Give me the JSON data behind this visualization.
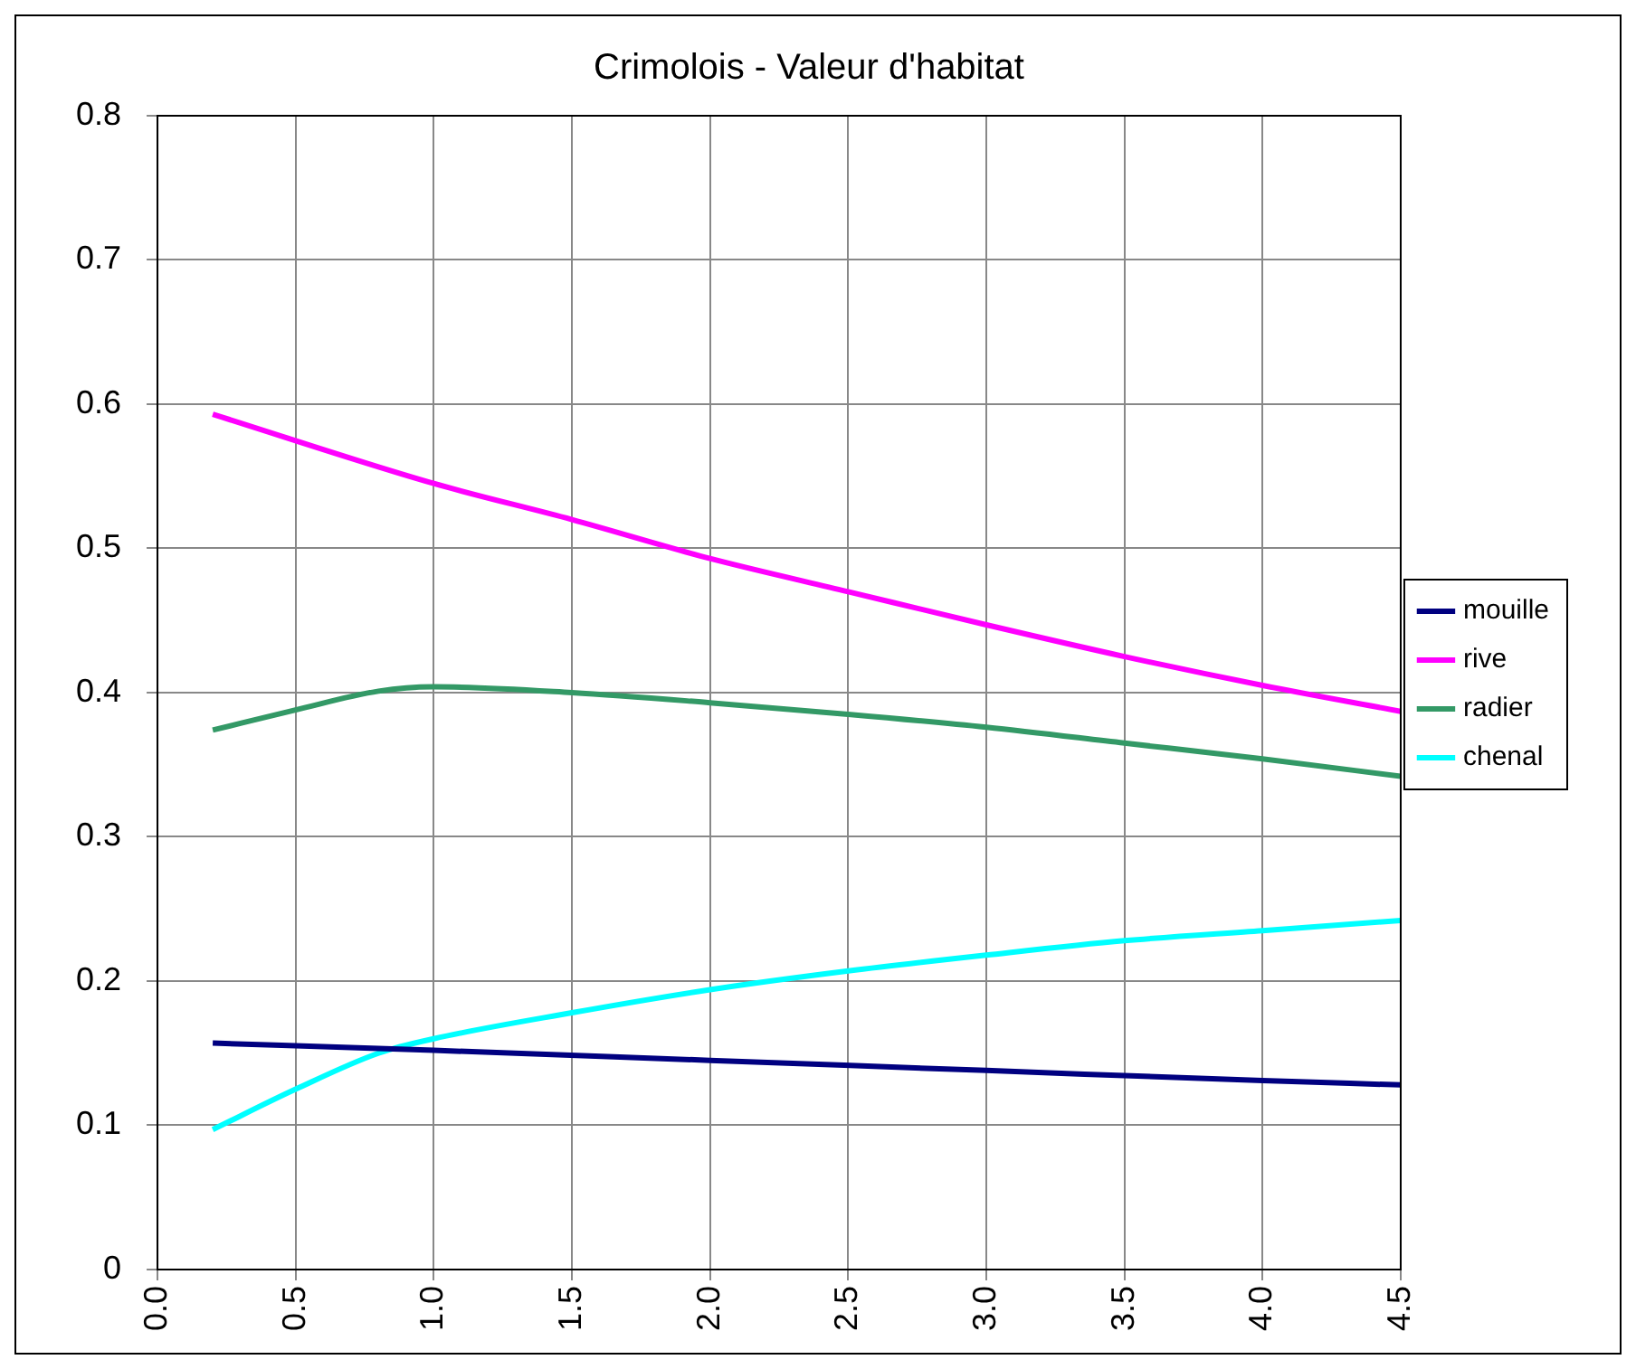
{
  "chart_data": {
    "type": "line",
    "title": "Crimolois - Valeur d'habitat",
    "series": [
      {
        "name": "mouille",
        "color": "#000080",
        "x": [
          0.2,
          1.0,
          2.0,
          3.0,
          4.0,
          4.5
        ],
        "values": [
          0.157,
          0.152,
          0.145,
          0.138,
          0.131,
          0.128
        ]
      },
      {
        "name": "rive",
        "color": "#ff00ff",
        "x": [
          0.2,
          1.0,
          1.5,
          2.0,
          2.5,
          3.0,
          3.5,
          4.0,
          4.5
        ],
        "values": [
          0.593,
          0.545,
          0.52,
          0.493,
          0.47,
          0.447,
          0.425,
          0.405,
          0.387
        ]
      },
      {
        "name": "radier",
        "color": "#339966",
        "x": [
          0.2,
          0.5,
          0.8,
          1.0,
          1.5,
          2.0,
          2.5,
          3.0,
          3.5,
          4.0,
          4.5
        ],
        "values": [
          0.374,
          0.388,
          0.401,
          0.404,
          0.4,
          0.393,
          0.385,
          0.376,
          0.365,
          0.354,
          0.342
        ]
      },
      {
        "name": "chenal",
        "color": "#00ffff",
        "x": [
          0.2,
          0.5,
          0.8,
          1.0,
          1.5,
          2.0,
          2.5,
          3.0,
          3.5,
          4.0,
          4.5
        ],
        "values": [
          0.097,
          0.125,
          0.15,
          0.16,
          0.178,
          0.194,
          0.207,
          0.218,
          0.228,
          0.235,
          0.242
        ]
      }
    ],
    "xlim": [
      0,
      4.5
    ],
    "xticks": [
      {
        "value": 0,
        "label": "0.0"
      },
      {
        "value": 0.5,
        "label": "0.5"
      },
      {
        "value": 1,
        "label": "1.0"
      },
      {
        "value": 1.5,
        "label": "1.5"
      },
      {
        "value": 2,
        "label": "2.0"
      },
      {
        "value": 2.5,
        "label": "2.5"
      },
      {
        "value": 3,
        "label": "3.0"
      },
      {
        "value": 3.5,
        "label": "3.5"
      },
      {
        "value": 4,
        "label": "4.0"
      },
      {
        "value": 4.5,
        "label": "4.5"
      }
    ],
    "ylim": [
      0,
      0.8
    ],
    "yticks": [
      0,
      0.1,
      0.2,
      0.3,
      0.4,
      0.5,
      0.6,
      0.7,
      0.8
    ],
    "grid": true,
    "legend": "right",
    "marker": "none",
    "line_style": "solid"
  }
}
